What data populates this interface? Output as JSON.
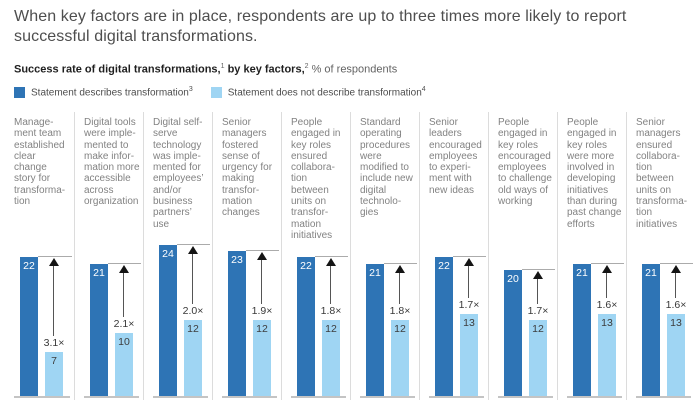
{
  "header": {
    "title": "When key factors are in place, respondents are up to three times more likely to report successful digital transformations.",
    "subtitle": {
      "bold1": "Success rate of digital transformations,",
      "sup1": "1",
      "bold2": " by key factors,",
      "sup2": "2",
      "rest": " % of respondents"
    }
  },
  "legend": [
    {
      "label": "Statement describes transformation",
      "sup": "3",
      "color": "#2e74b5"
    },
    {
      "label": "Statement does not describe transformation",
      "sup": "4",
      "color": "#9fd5f3"
    }
  ],
  "chart_data": {
    "type": "bar",
    "title": "Success rate of digital transformations, by key factors, % of respondents",
    "categories": [
      "Manage­ment team established clear change story for transforma­tion",
      "Digital tools were imple­mented to make infor­mation more accessible across organization",
      "Digital self-serve technology was imple­mented for employees’ and/or business partners’ use",
      "Senior managers fostered sense of urgency for making transfor­mation changes",
      "People engaged in key roles ensured collabora­tion between units on transfor­mation initiatives",
      "Standard operating procedures were modified to include new digital technolo­gies",
      "Senior leaders encouraged employees to experi­ment with new ideas",
      "People engaged in key roles encour­aged employees to chal­lenge old ways of working",
      "People engaged in key roles were more involved in developing initiatives than during past change efforts",
      "Senior managers ensured collabora­tion between units on transforma­tion initiatives"
    ],
    "series": [
      {
        "name": "Statement describes transformation",
        "color": "#2e74b5",
        "values": [
          22,
          21,
          24,
          23,
          22,
          21,
          22,
          20,
          21,
          21
        ]
      },
      {
        "name": "Statement does not describe transformation",
        "color": "#9fd5f3",
        "values": [
          7,
          10,
          12,
          12,
          12,
          12,
          13,
          12,
          13,
          13
        ]
      }
    ],
    "multipliers": [
      "3.1×",
      "2.1×",
      "2.0×",
      "1.9×",
      "1.8×",
      "1.8×",
      "1.7×",
      "1.7×",
      "1.6×",
      "1.6×"
    ],
    "ylim": [
      0,
      25
    ],
    "grid": false,
    "legend_position": "top"
  }
}
